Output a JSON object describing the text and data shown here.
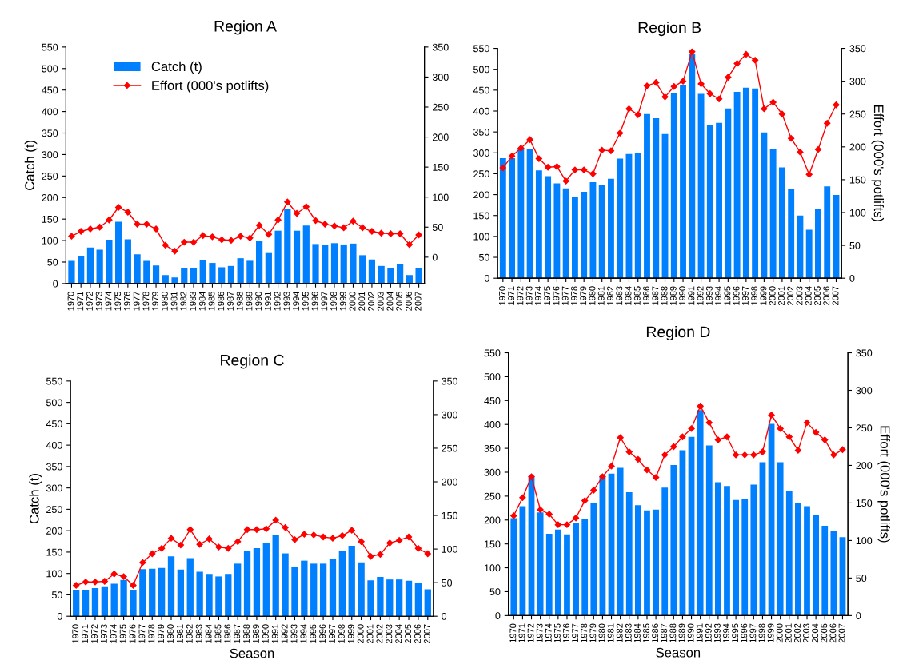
{
  "chart_data": [
    {
      "type": "bar",
      "title": "Region A",
      "ylabel": "Catch (t)",
      "legend": "top left",
      "categories": [
        "1970",
        "1971",
        "1972",
        "1973",
        "1974",
        "1975",
        "1976",
        "1977",
        "1978",
        "1979",
        "1980",
        "1981",
        "1982",
        "1983",
        "1984",
        "1985",
        "1986",
        "1987",
        "1988",
        "1989",
        "1990",
        "1991",
        "1992",
        "1993",
        "1994",
        "1995",
        "1996",
        "1997",
        "1998",
        "1999",
        "2000",
        "2001",
        "2002",
        "2003",
        "2004",
        "2005",
        "2006",
        "2007"
      ],
      "series": [
        {
          "name": "Catch (t)",
          "color": "#0080ff",
          "values": [
            53,
            64,
            84,
            79,
            102,
            144,
            103,
            68,
            53,
            42,
            20,
            14,
            35,
            35,
            55,
            48,
            38,
            41,
            59,
            53,
            99,
            71,
            123,
            173,
            123,
            135,
            92,
            89,
            94,
            91,
            93,
            66,
            56,
            41,
            37,
            45,
            20,
            37
          ]
        },
        {
          "name": "Effort (000's potlifts)",
          "type": "line",
          "axis": "y2",
          "color": "#ff0000",
          "marker": "diamond",
          "values": [
            35,
            43,
            47,
            50,
            62,
            83,
            75,
            55,
            55,
            47,
            20,
            10,
            25,
            25,
            36,
            34,
            29,
            28,
            35,
            32,
            53,
            38,
            62,
            92,
            73,
            84,
            61,
            55,
            52,
            49,
            60,
            49,
            43,
            40,
            39,
            39,
            21,
            37
          ]
        }
      ],
      "ylim": [
        0,
        550
      ],
      "yticks": [
        0,
        50,
        100,
        150,
        200,
        250,
        300,
        350,
        400,
        450,
        500,
        550
      ],
      "y2lim": [
        -44,
        350
      ],
      "y2ticks": [
        0,
        50,
        100,
        150,
        200,
        250,
        300,
        350
      ]
    },
    {
      "type": "bar",
      "title": "Region B",
      "y2label": "Effort (000's potlifts)",
      "categories": [
        "1970",
        "1971",
        "1972",
        "1973",
        "1974",
        "1975",
        "1976",
        "1977",
        "1978",
        "1979",
        "1980",
        "1981",
        "1982",
        "1983",
        "1984",
        "1985",
        "1986",
        "1987",
        "1988",
        "1989",
        "1990",
        "1991",
        "1992",
        "1993",
        "1994",
        "1995",
        "1996",
        "1997",
        "1998",
        "1999",
        "2000",
        "2001",
        "2002",
        "2003",
        "2004",
        "2005",
        "2006",
        "2007"
      ],
      "series": [
        {
          "color": "#0080ff",
          "values": [
            287,
            287,
            311,
            308,
            258,
            244,
            227,
            215,
            195,
            207,
            230,
            224,
            238,
            286,
            297,
            299,
            393,
            383,
            345,
            443,
            462,
            536,
            441,
            366,
            372,
            406,
            446,
            456,
            454,
            349,
            310,
            265,
            213,
            150,
            116,
            165,
            220,
            199
          ]
        },
        {
          "type": "line",
          "axis": "y2",
          "color": "#ff0000",
          "marker": "diamond",
          "values": [
            168,
            186,
            198,
            211,
            182,
            169,
            170,
            148,
            165,
            165,
            159,
            195,
            194,
            221,
            258,
            249,
            293,
            298,
            276,
            292,
            300,
            345,
            296,
            281,
            273,
            306,
            327,
            341,
            332,
            258,
            268,
            250,
            213,
            192,
            158,
            196,
            236,
            264
          ]
        }
      ],
      "ylim": [
        0,
        550
      ],
      "yticks": [
        0,
        50,
        100,
        150,
        200,
        250,
        300,
        350,
        400,
        450,
        500,
        550
      ],
      "y2lim": [
        0,
        350
      ],
      "y2ticks": [
        0,
        50,
        100,
        150,
        200,
        250,
        300,
        350
      ]
    },
    {
      "type": "bar",
      "title": "Region C",
      "ylabel": "Catch (t)",
      "xlabel": "Season",
      "categories": [
        "1970",
        "1971",
        "1972",
        "1973",
        "1974",
        "1975",
        "1976",
        "1977",
        "1978",
        "1979",
        "1980",
        "1981",
        "1982",
        "1983",
        "1984",
        "1985",
        "1986",
        "1987",
        "1988",
        "1989",
        "1990",
        "1991",
        "1992",
        "1993",
        "1994",
        "1995",
        "1996",
        "1997",
        "1998",
        "1999",
        "2000",
        "2001",
        "2002",
        "2003",
        "2004",
        "2005",
        "2006",
        "2007"
      ],
      "series": [
        {
          "color": "#0080ff",
          "values": [
            61,
            62,
            66,
            70,
            76,
            85,
            62,
            110,
            111,
            113,
            140,
            109,
            136,
            104,
            99,
            93,
            99,
            123,
            153,
            159,
            172,
            190,
            147,
            116,
            130,
            123,
            123,
            133,
            152,
            165,
            126,
            84,
            92,
            86,
            86,
            83,
            78,
            63
          ]
        },
        {
          "type": "line",
          "axis": "y2",
          "color": "#ff0000",
          "marker": "diamond",
          "values": [
            46,
            51,
            51,
            52,
            63,
            59,
            46,
            80,
            93,
            101,
            116,
            106,
            129,
            107,
            115,
            103,
            101,
            111,
            129,
            129,
            130,
            143,
            132,
            114,
            122,
            121,
            118,
            116,
            120,
            128,
            111,
            89,
            92,
            109,
            113,
            118,
            101,
            93
          ]
        }
      ],
      "ylim": [
        0,
        550
      ],
      "yticks": [
        0,
        50,
        100,
        150,
        200,
        250,
        300,
        350,
        400,
        450,
        500,
        550
      ],
      "y2lim": [
        0,
        350
      ],
      "y2ticks": [
        0,
        50,
        100,
        150,
        200,
        250,
        300,
        350
      ]
    },
    {
      "type": "bar",
      "title": "Region D",
      "xlabel": "Season",
      "y2label": "Effort (000's potlifts)",
      "categories": [
        "1970",
        "1971",
        "1972",
        "1973",
        "1974",
        "1975",
        "1976",
        "1977",
        "1978",
        "1979",
        "1980",
        "1981",
        "1982",
        "1983",
        "1984",
        "1985",
        "1986",
        "1987",
        "1988",
        "1989",
        "1990",
        "1991",
        "1992",
        "1993",
        "1994",
        "1995",
        "1996",
        "1997",
        "1998",
        "1999",
        "2000",
        "2001",
        "2002",
        "2003",
        "2004",
        "2005",
        "2006",
        "2007"
      ],
      "series": [
        {
          "color": "#0080ff",
          "values": [
            204,
            229,
            291,
            216,
            171,
            180,
            170,
            193,
            203,
            235,
            291,
            297,
            309,
            258,
            231,
            220,
            222,
            268,
            315,
            346,
            374,
            430,
            356,
            279,
            271,
            242,
            245,
            274,
            321,
            401,
            321,
            260,
            235,
            229,
            210,
            188,
            178,
            164
          ]
        },
        {
          "type": "line",
          "axis": "y2",
          "color": "#ff0000",
          "marker": "diamond",
          "values": [
            133,
            157,
            185,
            141,
            135,
            121,
            121,
            130,
            153,
            167,
            185,
            199,
            237,
            218,
            208,
            194,
            184,
            214,
            225,
            238,
            249,
            279,
            257,
            234,
            238,
            214,
            214,
            214,
            218,
            267,
            249,
            238,
            220,
            257,
            244,
            234,
            214,
            221
          ]
        }
      ],
      "ylim": [
        0,
        550
      ],
      "yticks": [
        0,
        50,
        100,
        150,
        200,
        250,
        300,
        350,
        400,
        450,
        500,
        550
      ],
      "y2lim": [
        0,
        350
      ],
      "y2ticks": [
        0,
        50,
        100,
        150,
        200,
        250,
        300,
        350
      ]
    }
  ]
}
